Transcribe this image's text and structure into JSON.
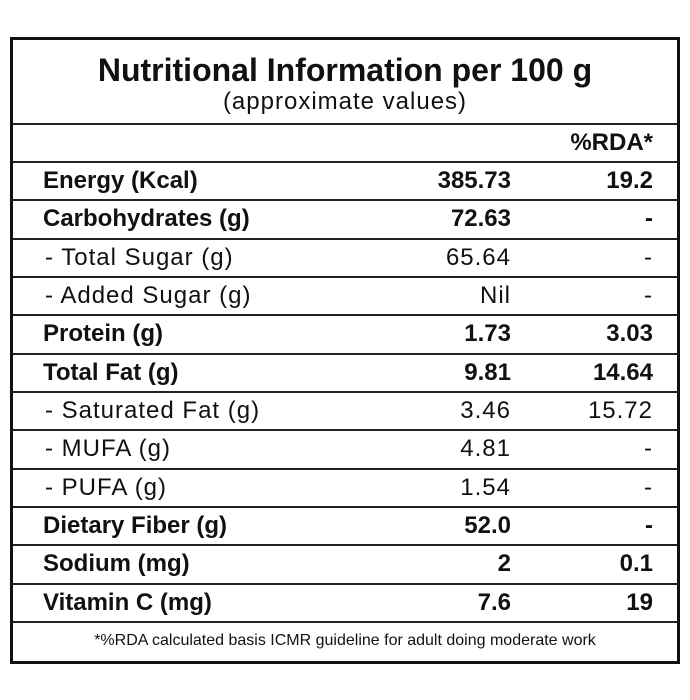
{
  "header": {
    "title": "Nutritional Information per 100 g",
    "subtitle": "(approximate values)"
  },
  "table": {
    "rda_header": "%RDA*",
    "rows": [
      {
        "label": "Energy (Kcal)",
        "value": "385.73",
        "rda": "19.2",
        "bold": true
      },
      {
        "label": "Carbohydrates (g)",
        "value": "72.63",
        "rda": "-",
        "bold": true
      },
      {
        "label": "- Total Sugar (g)",
        "value": "65.64",
        "rda": "-",
        "bold": false
      },
      {
        "label": "- Added Sugar (g)",
        "value": "Nil",
        "rda": "-",
        "bold": false
      },
      {
        "label": "Protein (g)",
        "value": "1.73",
        "rda": "3.03",
        "bold": true
      },
      {
        "label": "Total Fat (g)",
        "value": "9.81",
        "rda": "14.64",
        "bold": true
      },
      {
        "label": "- Saturated Fat (g)",
        "value": "3.46",
        "rda": "15.72",
        "bold": false
      },
      {
        "label": "- MUFA (g)",
        "value": "4.81",
        "rda": "-",
        "bold": false
      },
      {
        "label": "- PUFA (g)",
        "value": "1.54",
        "rda": "-",
        "bold": false
      },
      {
        "label": "Dietary Fiber (g)",
        "value": "52.0",
        "rda": "-",
        "bold": true
      },
      {
        "label": "Sodium (mg)",
        "value": "2",
        "rda": "0.1",
        "bold": true
      },
      {
        "label": "Vitamin C (mg)",
        "value": "7.6",
        "rda": "19",
        "bold": true
      }
    ]
  },
  "footnote": "*%RDA calculated basis ICMR guideline for adult doing moderate work"
}
